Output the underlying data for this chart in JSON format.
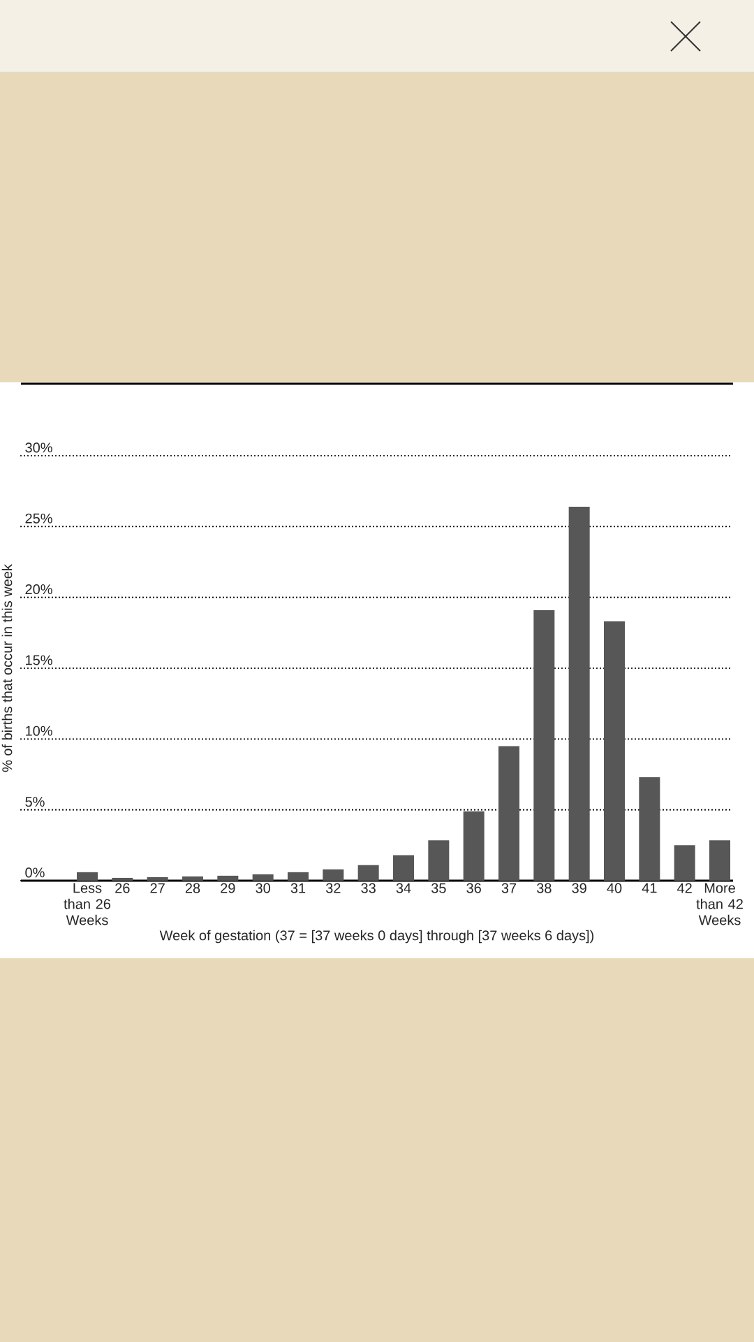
{
  "chart_data": {
    "type": "bar",
    "xlabel": "Week of gestation (37 = [37 weeks 0 days] through [37 weeks 6 days])",
    "ylabel": "% of births that occur in this week",
    "categories": [
      "Less than 26 Weeks",
      "26",
      "27",
      "28",
      "29",
      "30",
      "31",
      "32",
      "33",
      "34",
      "35",
      "36",
      "37",
      "38",
      "39",
      "40",
      "41",
      "42",
      "More than 42 Weeks"
    ],
    "values": [
      0.6,
      0.2,
      0.25,
      0.3,
      0.35,
      0.45,
      0.6,
      0.8,
      1.1,
      1.8,
      2.85,
      4.9,
      9.5,
      19.1,
      26.4,
      18.3,
      7.3,
      2.5,
      2.85
    ],
    "color": "#575757",
    "ylim": [
      0,
      30
    ],
    "yticks": [
      {
        "value": 0,
        "label": "0%"
      },
      {
        "value": 5,
        "label": "5%"
      },
      {
        "value": 10,
        "label": "10%"
      },
      {
        "value": 15,
        "label": "15%"
      },
      {
        "value": 20,
        "label": "20%"
      },
      {
        "value": 25,
        "label": "25%"
      },
      {
        "value": 30,
        "label": "30%"
      }
    ],
    "grid": "y"
  }
}
